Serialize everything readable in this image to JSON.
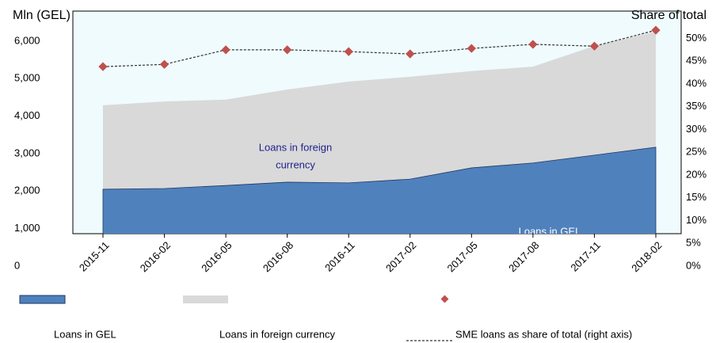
{
  "chart_data": {
    "type": "stacked-area-line",
    "y_label": "Mln (GEL)",
    "y2_label": "Share of total",
    "categories": [
      "2015-11",
      "2016-02",
      "2016-05",
      "2016-08",
      "2016-11",
      "2017-02",
      "2017-05",
      "2017-08",
      "2017-11",
      "2018-02"
    ],
    "series": [
      {
        "name": "Loans in GEL",
        "color": "#4f81bd",
        "values": [
          2050,
          2070,
          2150,
          2240,
          2220,
          2320,
          2620,
          2750,
          2960,
          3170
        ]
      },
      {
        "name": "Loans in foreign currency",
        "color": "#d9d9d9",
        "values": [
          2240,
          2320,
          2290,
          2470,
          2700,
          2730,
          2580,
          2570,
          2910,
          3080
        ]
      },
      {
        "name": "SME loans as share of total (right axis)",
        "color": "#c0504d",
        "axis": "y2",
        "values": [
          43.8,
          44.3,
          47.5,
          47.5,
          47.1,
          46.6,
          47.8,
          48.7,
          48.3,
          51.8
        ]
      }
    ],
    "ylim": [
      0,
      6800
    ],
    "yticks": [
      0,
      {
        "value": 1000,
        "label": "1,000"
      },
      {
        "value": 2000,
        "label": "2,000"
      },
      {
        "value": 3000,
        "label": "3,000"
      },
      {
        "value": 4000,
        "label": "4,000"
      },
      {
        "value": 5000,
        "label": "5,000"
      },
      {
        "value": 6000,
        "label": "6,000"
      }
    ],
    "y2lim": [
      0,
      56
    ],
    "y2ticks": [
      {
        "value": 0,
        "label": "0%"
      },
      {
        "value": 5,
        "label": "5%"
      },
      {
        "value": 10,
        "label": "10%"
      },
      {
        "value": 15,
        "label": "15%"
      },
      {
        "value": 20,
        "label": "20%"
      },
      {
        "value": 25,
        "label": "25%"
      },
      {
        "value": 30,
        "label": "30%"
      },
      {
        "value": 35,
        "label": "35%"
      },
      {
        "value": 40,
        "label": "40%"
      },
      {
        "value": 45,
        "label": "45%"
      },
      {
        "value": 50,
        "label": "50%"
      }
    ],
    "annotations": [
      [
        "Loans in foreign",
        "currency"
      ],
      [
        "Loans in GEL"
      ]
    ]
  }
}
